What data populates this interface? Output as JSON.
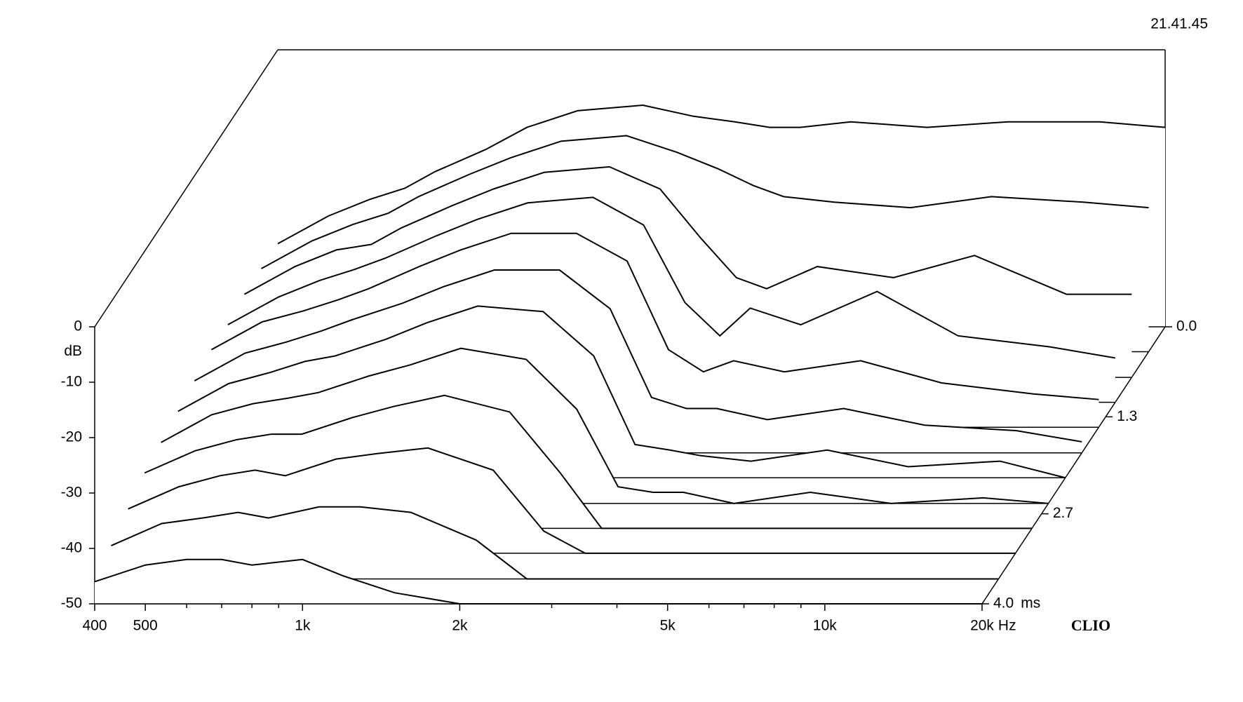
{
  "chart_data": {
    "type": "waterfall",
    "timestamp": "21.41.45",
    "brand": "CLIO",
    "xlabel": "Hz",
    "ylabel": "dB",
    "zlabel": "ms",
    "color": "#000000",
    "xscale": "log",
    "x": [
      400,
      500,
      600,
      700,
      800,
      1000,
      1200,
      1500,
      2000,
      2500,
      3000,
      3500,
      4000,
      5000,
      7000,
      10000,
      15000,
      20000
    ],
    "xlim": [
      400,
      20000
    ],
    "xticks": [
      400,
      500,
      {
        "value": 1000,
        "label": "1k"
      },
      {
        "value": 2000,
        "label": "2k"
      },
      {
        "value": 5000,
        "label": "5k"
      },
      {
        "value": 10000,
        "label": "10k"
      },
      {
        "value": 20000,
        "label": "20k"
      }
    ],
    "xminorticks": [
      600,
      700,
      800,
      900,
      3000,
      4000,
      6000,
      7000,
      8000,
      9000
    ],
    "ylim": [
      -50,
      0
    ],
    "yticks": [
      0,
      -10,
      -20,
      -30,
      -40,
      -50
    ],
    "zlim": [
      0,
      4
    ],
    "zticks": [
      {
        "value": 0,
        "label": "0.0"
      },
      1.3,
      2.7,
      {
        "value": 4,
        "label": "4.0"
      }
    ],
    "series": [
      {
        "t": 0,
        "values": [
          -35,
          -30,
          -27,
          -25,
          -22,
          -18,
          -14,
          -11,
          -10,
          -12,
          -13,
          -14,
          -14,
          -13,
          -14,
          -13,
          -13,
          -14
        ]
      },
      {
        "t": 0.36,
        "values": [
          -35,
          -30,
          -27,
          -25,
          -22,
          -18,
          -15,
          -12,
          -11,
          -14,
          -17,
          -20,
          -22,
          -23,
          -24,
          -22,
          -23,
          -24
        ]
      },
      {
        "t": 0.73,
        "values": [
          -35,
          -30,
          -27,
          -26,
          -23,
          -19,
          -16,
          -13,
          -12,
          -16,
          -25,
          -32,
          -34,
          -30,
          -32,
          -28,
          -35,
          -35
        ]
      },
      {
        "t": 1.09,
        "values": [
          -36,
          -31,
          -28,
          -26,
          -24,
          -20,
          -17,
          -14,
          -13,
          -18,
          -32,
          -38,
          -33,
          -36,
          -30,
          -38,
          -40,
          -42
        ]
      },
      {
        "t": 1.45,
        "values": [
          -36,
          -31,
          -29,
          -27,
          -25,
          -21,
          -18,
          -15,
          -15,
          -20,
          -36,
          -40,
          -38,
          -40,
          -38,
          -42,
          -44,
          -45
        ]
      },
      {
        "t": 1.82,
        "values": [
          -37,
          -32,
          -30,
          -28,
          -26,
          -23,
          -20,
          -17,
          -17,
          -24,
          -40,
          -42,
          -42,
          -44,
          -42,
          -45,
          -46,
          -48
        ]
      },
      {
        "t": 2.18,
        "values": [
          -38,
          -33,
          -31,
          -29,
          -28,
          -25,
          -22,
          -19,
          -20,
          -28,
          -44,
          -45,
          -46,
          -47,
          -45,
          -48,
          -47,
          -50
        ]
      },
      {
        "t": 2.55,
        "values": [
          -39,
          -34,
          -32,
          -31,
          -30,
          -27,
          -25,
          -22,
          -24,
          -33,
          -47,
          -48,
          -48,
          -50,
          -48,
          -50,
          -49,
          -50
        ]
      },
      {
        "t": 2.91,
        "values": [
          -40,
          -36,
          -34,
          -33,
          -33,
          -30,
          -28,
          -26,
          -29,
          -40,
          -50,
          -50,
          -50,
          -50,
          -50,
          -50,
          -50,
          -50
        ]
      },
      {
        "t": 3.27,
        "values": [
          -42,
          -38,
          -36,
          -35,
          -36,
          -33,
          -32,
          -31,
          -35,
          -46,
          -50,
          -50,
          -50,
          -50,
          -50,
          -50,
          -50,
          -50
        ]
      },
      {
        "t": 3.64,
        "values": [
          -44,
          -40,
          -39,
          -38,
          -39,
          -37,
          -37,
          -38,
          -43,
          -50,
          -50,
          -50,
          -50,
          -50,
          -50,
          -50,
          -50,
          -50
        ]
      },
      {
        "t": 4,
        "values": [
          -46,
          -43,
          -42,
          -42,
          -43,
          -42,
          -45,
          -48,
          -50,
          -50,
          -50,
          -50,
          -50,
          -50,
          -50,
          -50,
          -50,
          -50
        ]
      }
    ]
  }
}
